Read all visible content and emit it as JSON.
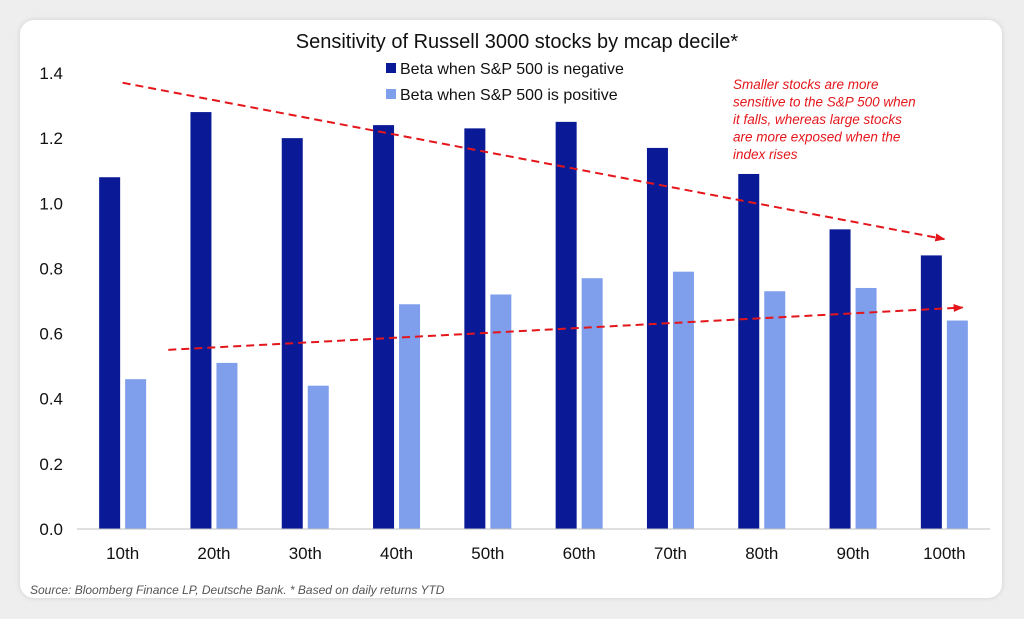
{
  "chart_data": {
    "type": "bar",
    "title": "Sensitivity of Russell 3000 stocks by mcap decile*",
    "categories": [
      "10th",
      "20th",
      "30th",
      "40th",
      "50th",
      "60th",
      "70th",
      "80th",
      "90th",
      "100th"
    ],
    "series": [
      {
        "name": "Beta when S&P 500 is negative",
        "color": "#0a1a96",
        "values": [
          1.08,
          1.28,
          1.2,
          1.24,
          1.23,
          1.25,
          1.17,
          1.09,
          0.92,
          0.84
        ]
      },
      {
        "name": "Beta when S&P 500 is positive",
        "color": "#7f9fec",
        "values": [
          0.46,
          0.51,
          0.44,
          0.69,
          0.72,
          0.77,
          0.79,
          0.73,
          0.74,
          0.64
        ]
      }
    ],
    "ylim": [
      0,
      1.4
    ],
    "yticks": [
      "0.0",
      "0.2",
      "0.4",
      "0.6",
      "0.8",
      "1.0",
      "1.2",
      "1.4"
    ],
    "annotation": {
      "lines": [
        "Smaller stocks are more",
        "sensitive to the S&P 500 when",
        "it falls, whereas large stocks",
        "are more exposed when the",
        "index rises"
      ],
      "color": "#e4161b"
    },
    "trend_lines": [
      {
        "name": "negative-trend",
        "from": [
          0.5,
          1.37
        ],
        "to": [
          9.5,
          0.89
        ]
      },
      {
        "name": "positive-trend",
        "from": [
          1.0,
          0.55
        ],
        "to": [
          9.7,
          0.68
        ]
      }
    ]
  },
  "source": "Source: Bloomberg Finance LP, Deutsche Bank. * Based on daily returns YTD"
}
